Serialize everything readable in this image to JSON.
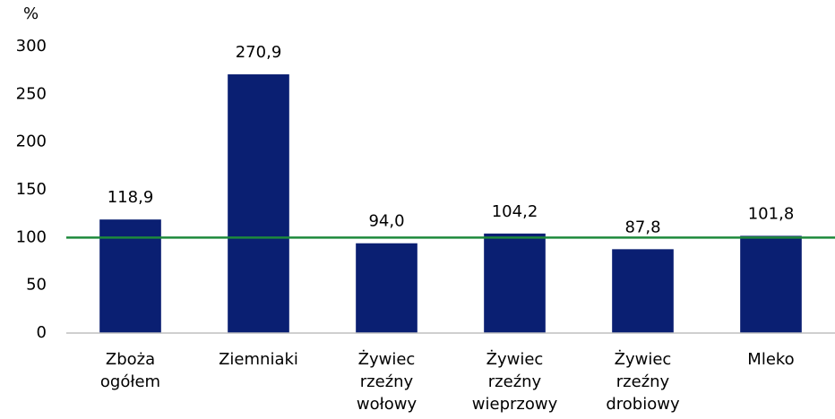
{
  "chart_data": {
    "type": "bar",
    "ylabel": "%",
    "categories": [
      "Zboża ogółem",
      "Ziemniaki",
      "Żywiec rzeźny wołowy",
      "Żywiec rzeźny wieprzowy",
      "Żywiec rzeźny drobiowy",
      "Mleko"
    ],
    "values": [
      118.9,
      270.9,
      94.0,
      104.2,
      87.8,
      101.8
    ],
    "value_labels": [
      "118,9",
      "270,9",
      "94,0",
      "104,2",
      "87,8",
      "101,8"
    ],
    "color": "#0a1f72",
    "ylim": [
      0,
      300
    ],
    "yticks": [
      0,
      50,
      100,
      150,
      200,
      250,
      300
    ],
    "grid": false,
    "reference_line": {
      "value": 100,
      "color": "#1e8a3c"
    }
  }
}
